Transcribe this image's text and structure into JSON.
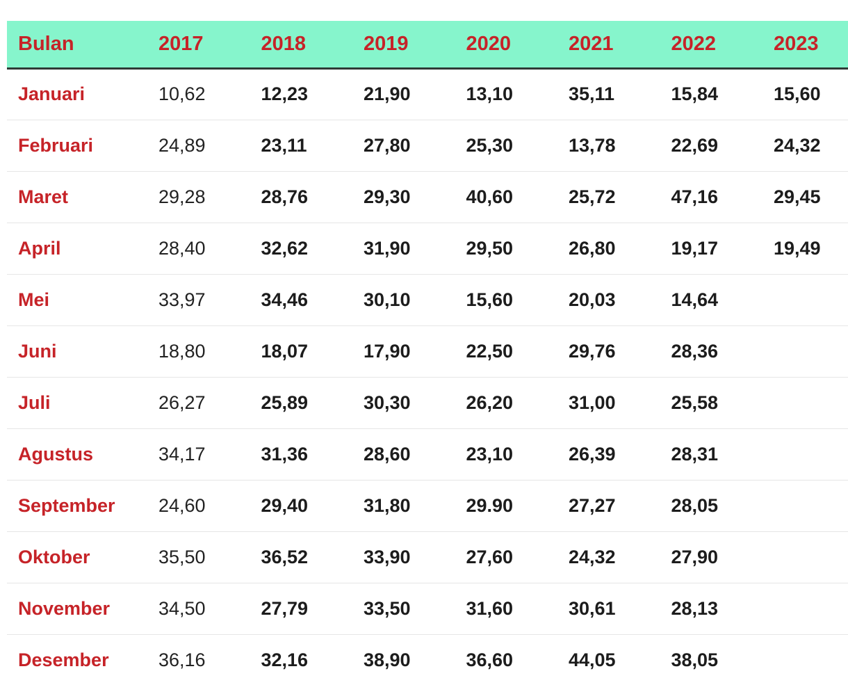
{
  "table": {
    "headers": [
      "Bulan",
      "2017",
      "2018",
      "2019",
      "2020",
      "2021",
      "2022",
      "2023"
    ],
    "rows": [
      {
        "month": "Januari",
        "values": [
          "10,62",
          "12,23",
          "21,90",
          "13,10",
          "35,11",
          "15,84",
          "15,60"
        ]
      },
      {
        "month": "Februari",
        "values": [
          "24,89",
          "23,11",
          "27,80",
          "25,30",
          "13,78",
          "22,69",
          "24,32"
        ]
      },
      {
        "month": "Maret",
        "values": [
          "29,28",
          "28,76",
          "29,30",
          "40,60",
          "25,72",
          "47,16",
          "29,45"
        ]
      },
      {
        "month": "April",
        "values": [
          "28,40",
          "32,62",
          "31,90",
          "29,50",
          "26,80",
          "19,17",
          "19,49"
        ]
      },
      {
        "month": "Mei",
        "values": [
          "33,97",
          "34,46",
          "30,10",
          "15,60",
          "20,03",
          "14,64",
          ""
        ]
      },
      {
        "month": "Juni",
        "values": [
          "18,80",
          "18,07",
          "17,90",
          "22,50",
          "29,76",
          "28,36",
          ""
        ]
      },
      {
        "month": "Juli",
        "values": [
          "26,27",
          "25,89",
          "30,30",
          "26,20",
          "31,00",
          "25,58",
          ""
        ]
      },
      {
        "month": "Agustus",
        "values": [
          "34,17",
          "31,36",
          "28,60",
          "23,10",
          "26,39",
          "28,31",
          ""
        ]
      },
      {
        "month": "September",
        "values": [
          "24,60",
          "29,40",
          "31,80",
          "29.90",
          "27,27",
          "28,05",
          ""
        ]
      },
      {
        "month": "Oktober",
        "values": [
          "35,50",
          "36,52",
          "33,90",
          "27,60",
          "24,32",
          "27,90",
          ""
        ]
      },
      {
        "month": "November",
        "values": [
          "34,50",
          "27,79",
          "33,50",
          "31,60",
          "30,61",
          "28,13",
          ""
        ]
      },
      {
        "month": "Desember",
        "values": [
          "36,16",
          "32,16",
          "38,90",
          "36,60",
          "44,05",
          "38,05",
          ""
        ]
      }
    ]
  },
  "colors": {
    "header_background": "#86f5cc",
    "header_text": "#c62328",
    "month_text": "#c62328",
    "value_text": "#1c1c1c",
    "header_rule": "#2f3a36",
    "row_divider": "#e6e6e6"
  }
}
